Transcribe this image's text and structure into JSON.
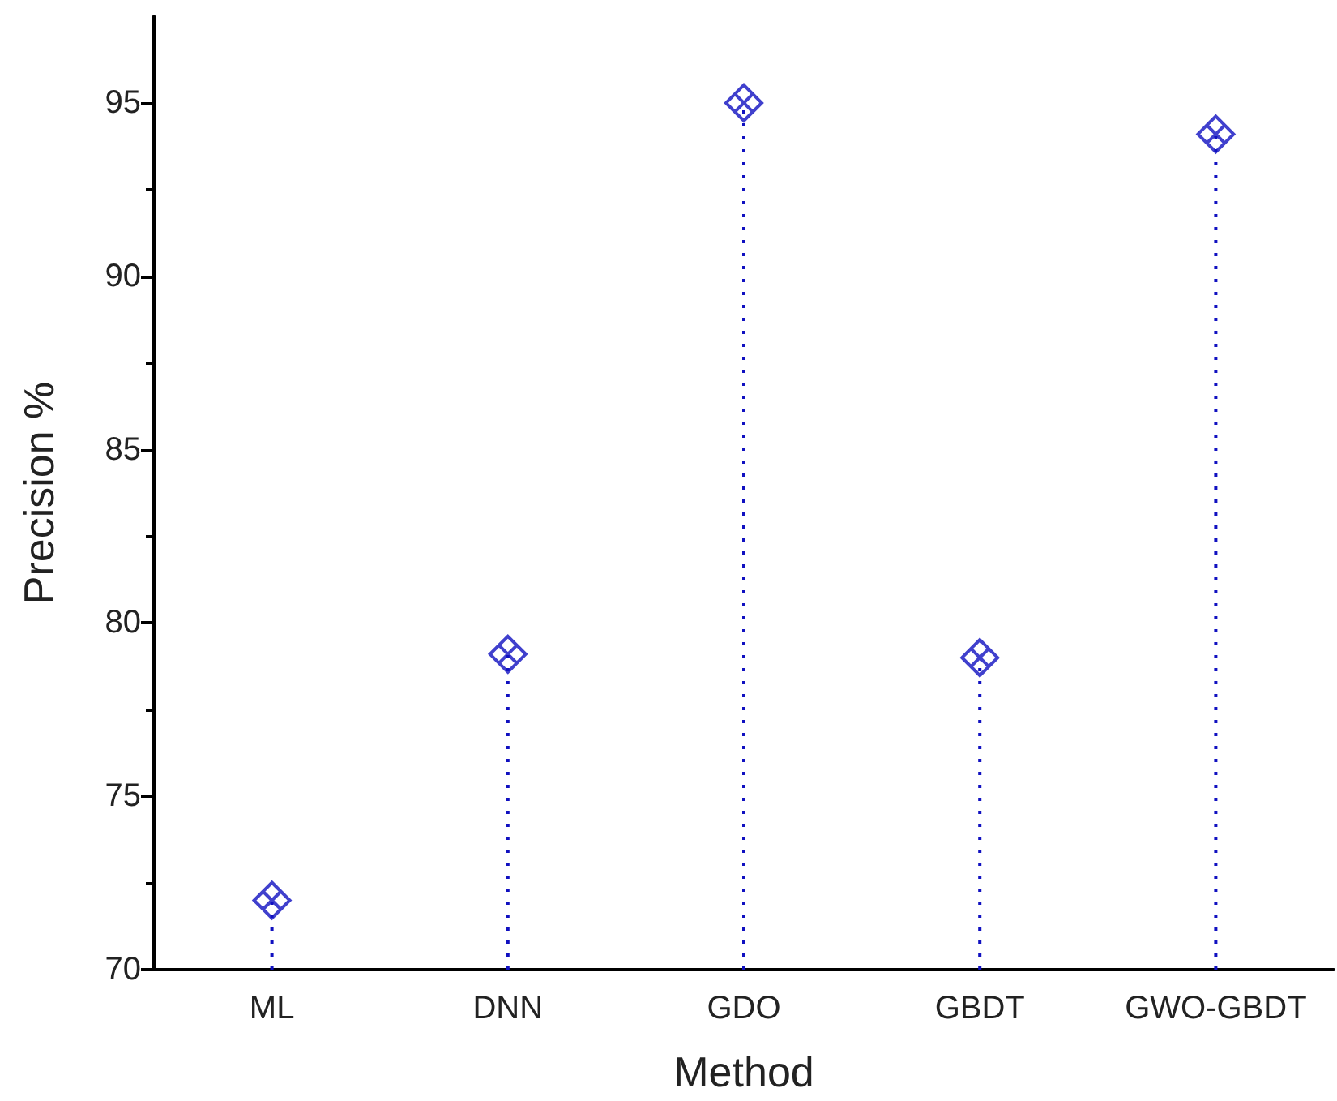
{
  "chart_data": {
    "type": "lollipop",
    "xlabel": "Method",
    "ylabel": "Precision %",
    "categories": [
      "ML",
      "DNN",
      "GDO",
      "GBDT",
      "GWO-GBDT"
    ],
    "values": [
      72.0,
      79.1,
      95.0,
      79.0,
      94.1
    ],
    "color": "#1010c0",
    "marker": "cross",
    "line_style": "dotted",
    "ylim": [
      70,
      97.5
    ],
    "yticks": [
      70,
      75,
      80,
      85,
      90,
      95
    ]
  }
}
